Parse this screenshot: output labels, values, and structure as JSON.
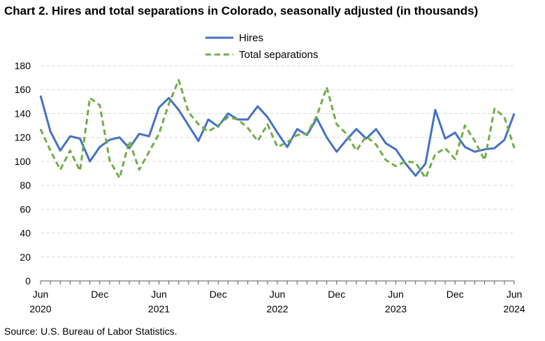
{
  "title": "Chart 2. Hires and total separations in Colorado, seasonally adjusted (in thousands)",
  "source": "Source: U.S. Bureau of Labor Statistics.",
  "colors": {
    "hires": "#4472C4",
    "separations": "#70AD47",
    "grid": "#d9d9d9",
    "axis": "#000000"
  },
  "chart_data": {
    "type": "line",
    "title": "Chart 2. Hires and total separations in Colorado, seasonally adjusted (in thousands)",
    "xlabel": "",
    "ylabel": "",
    "ylim": [
      0,
      180
    ],
    "yticks": [
      0,
      20,
      40,
      60,
      80,
      100,
      120,
      140,
      160,
      180
    ],
    "grid": true,
    "legend_position": "top-center",
    "x": [
      "2020-06",
      "2020-07",
      "2020-08",
      "2020-09",
      "2020-10",
      "2020-11",
      "2020-12",
      "2021-01",
      "2021-02",
      "2021-03",
      "2021-04",
      "2021-05",
      "2021-06",
      "2021-07",
      "2021-08",
      "2021-09",
      "2021-10",
      "2021-11",
      "2021-12",
      "2022-01",
      "2022-02",
      "2022-03",
      "2022-04",
      "2022-05",
      "2022-06",
      "2022-07",
      "2022-08",
      "2022-09",
      "2022-10",
      "2022-11",
      "2022-12",
      "2023-01",
      "2023-02",
      "2023-03",
      "2023-04",
      "2023-05",
      "2023-06",
      "2023-07",
      "2023-08",
      "2023-09",
      "2023-10",
      "2023-11",
      "2023-12",
      "2024-01",
      "2024-02",
      "2024-03",
      "2024-04",
      "2024-05",
      "2024-06"
    ],
    "x_tick_labels": [
      {
        "month": "Jun",
        "year": "2020",
        "index": 0
      },
      {
        "month": "Dec",
        "year": "",
        "index": 6
      },
      {
        "month": "Jun",
        "year": "2021",
        "index": 12
      },
      {
        "month": "Dec",
        "year": "",
        "index": 18
      },
      {
        "month": "Jun",
        "year": "2022",
        "index": 24
      },
      {
        "month": "Dec",
        "year": "",
        "index": 30
      },
      {
        "month": "Jun",
        "year": "2023",
        "index": 36
      },
      {
        "month": "Dec",
        "year": "",
        "index": 42
      },
      {
        "month": "Jun",
        "year": "2024",
        "index": 48
      }
    ],
    "series": [
      {
        "name": "Hires",
        "style": "solid",
        "values": [
          155,
          125,
          109,
          121,
          119,
          100,
          112,
          118,
          120,
          111,
          123,
          121,
          145,
          153,
          143,
          130,
          117,
          135,
          129,
          140,
          135,
          135,
          146,
          137,
          124,
          112,
          127,
          122,
          136,
          120,
          108,
          118,
          127,
          119,
          127,
          115,
          110,
          98,
          88,
          98,
          143,
          119,
          124,
          112,
          108,
          110,
          111,
          118,
          140
        ]
      },
      {
        "name": "Total separations",
        "style": "dashed",
        "values": [
          127,
          109,
          93,
          109,
          92,
          153,
          147,
          101,
          86,
          117,
          93,
          108,
          123,
          148,
          168,
          141,
          131,
          125,
          130,
          137,
          135,
          128,
          117,
          131,
          112,
          116,
          122,
          123,
          138,
          162,
          131,
          123,
          109,
          121,
          114,
          101,
          96,
          100,
          99,
          86,
          106,
          111,
          102,
          130,
          117,
          101,
          144,
          137,
          111
        ]
      }
    ]
  }
}
